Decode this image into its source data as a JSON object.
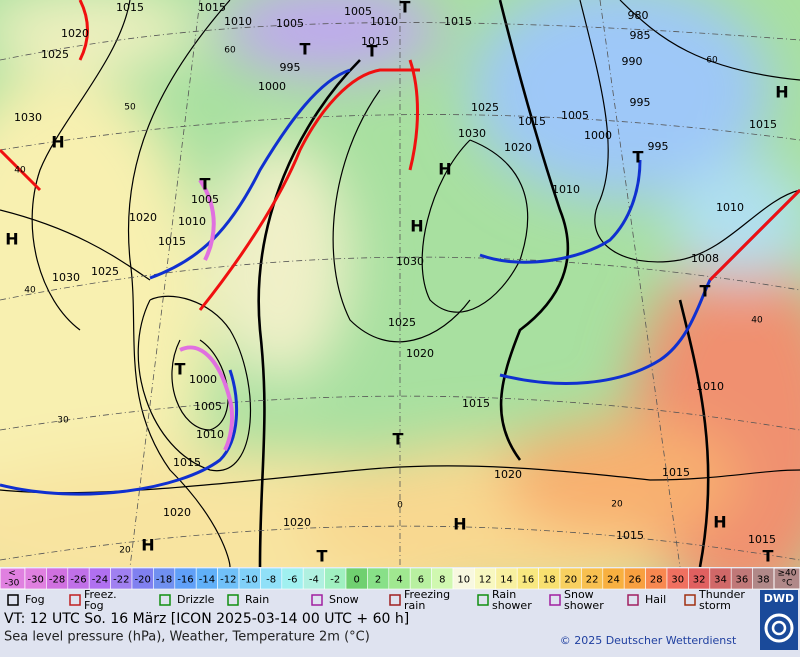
{
  "map": {
    "pressure_labels": [
      "1015",
      "1015",
      "1010",
      "1005",
      "1005",
      "1010",
      "1015",
      "1020",
      "1025",
      "995",
      "1000",
      "1015",
      "980",
      "985",
      "990",
      "995",
      "995",
      "1025",
      "1015",
      "1005",
      "1000",
      "1030",
      "1020",
      "1030",
      "1010",
      "1010",
      "1015",
      "1005",
      "1020",
      "1010",
      "1015",
      "1030",
      "1025",
      "1030",
      "1025",
      "1020",
      "1000",
      "1005",
      "1010",
      "1015",
      "1015",
      "1010",
      "1020",
      "1015",
      "1020",
      "1020",
      "1015",
      "1015",
      "1008"
    ],
    "centers": [
      "H",
      "H",
      "H",
      "T",
      "T",
      "T",
      "T",
      "H",
      "T",
      "H",
      "T",
      "T",
      "H",
      "H",
      "H",
      "T",
      "T",
      "T"
    ],
    "latitudes": [
      "60",
      "50",
      "40",
      "40",
      "30",
      "20",
      "0",
      "20",
      "40",
      "60"
    ]
  },
  "color_scale": {
    "low_label": [
      "<",
      "-30"
    ],
    "high_label": [
      "≥40",
      "°C"
    ],
    "steps": [
      {
        "value": -30,
        "color": "#e080e0"
      },
      {
        "value": -28,
        "color": "#d070e0"
      },
      {
        "value": -26,
        "color": "#c070e8"
      },
      {
        "value": -24,
        "color": "#b070f0"
      },
      {
        "value": -22,
        "color": "#a080f0"
      },
      {
        "value": -20,
        "color": "#8080f0"
      },
      {
        "value": -18,
        "color": "#7090f0"
      },
      {
        "value": -16,
        "color": "#60a0f8"
      },
      {
        "value": -14,
        "color": "#60b0f8"
      },
      {
        "value": -12,
        "color": "#70c0f8"
      },
      {
        "value": -10,
        "color": "#80d0f8"
      },
      {
        "value": -8,
        "color": "#90e0f8"
      },
      {
        "value": -6,
        "color": "#a0f0f0"
      },
      {
        "value": -4,
        "color": "#b0f0e0"
      },
      {
        "value": -2,
        "color": "#a0f0c0"
      },
      {
        "value": 0,
        "color": "#70d070"
      },
      {
        "value": 2,
        "color": "#88e088"
      },
      {
        "value": 4,
        "color": "#a0e890"
      },
      {
        "value": 6,
        "color": "#b8f0a0"
      },
      {
        "value": 8,
        "color": "#d0f8b0"
      },
      {
        "value": 10,
        "color": "#f8f8e0"
      },
      {
        "value": 12,
        "color": "#f8f8c0"
      },
      {
        "value": 14,
        "color": "#f8f0a0"
      },
      {
        "value": 16,
        "color": "#f8e880"
      },
      {
        "value": 18,
        "color": "#f8e070"
      },
      {
        "value": 20,
        "color": "#f8d060"
      },
      {
        "value": 22,
        "color": "#f8c050"
      },
      {
        "value": 24,
        "color": "#f8b040"
      },
      {
        "value": 26,
        "color": "#f8a040"
      },
      {
        "value": 28,
        "color": "#f88850"
      },
      {
        "value": 30,
        "color": "#f07060"
      },
      {
        "value": 32,
        "color": "#e06060"
      },
      {
        "value": 34,
        "color": "#d06868"
      },
      {
        "value": 36,
        "color": "#c07878"
      },
      {
        "value": 38,
        "color": "#b08888"
      }
    ]
  },
  "weather_legend": [
    [
      "Fog"
    ],
    [
      "Freez.",
      "Fog"
    ],
    [
      "Drizzle"
    ],
    [
      "Rain"
    ],
    [
      "Snow"
    ],
    [
      "Freezing",
      "rain"
    ],
    [
      "Rain",
      "shower"
    ],
    [
      "Snow",
      "shower"
    ],
    [
      "Hail"
    ],
    [
      "Thunder",
      "storm"
    ]
  ],
  "footer": {
    "valid_time": "VT: 12 UTC So.  16 März [ICON 2025-03-14  00 UTC + 60 h]",
    "description": "Sea level pressure (hPa), Weather, Temperature 2m (°C)",
    "copyright": "© 2025 Deutscher Wetterdienst",
    "logo": "DWD"
  }
}
